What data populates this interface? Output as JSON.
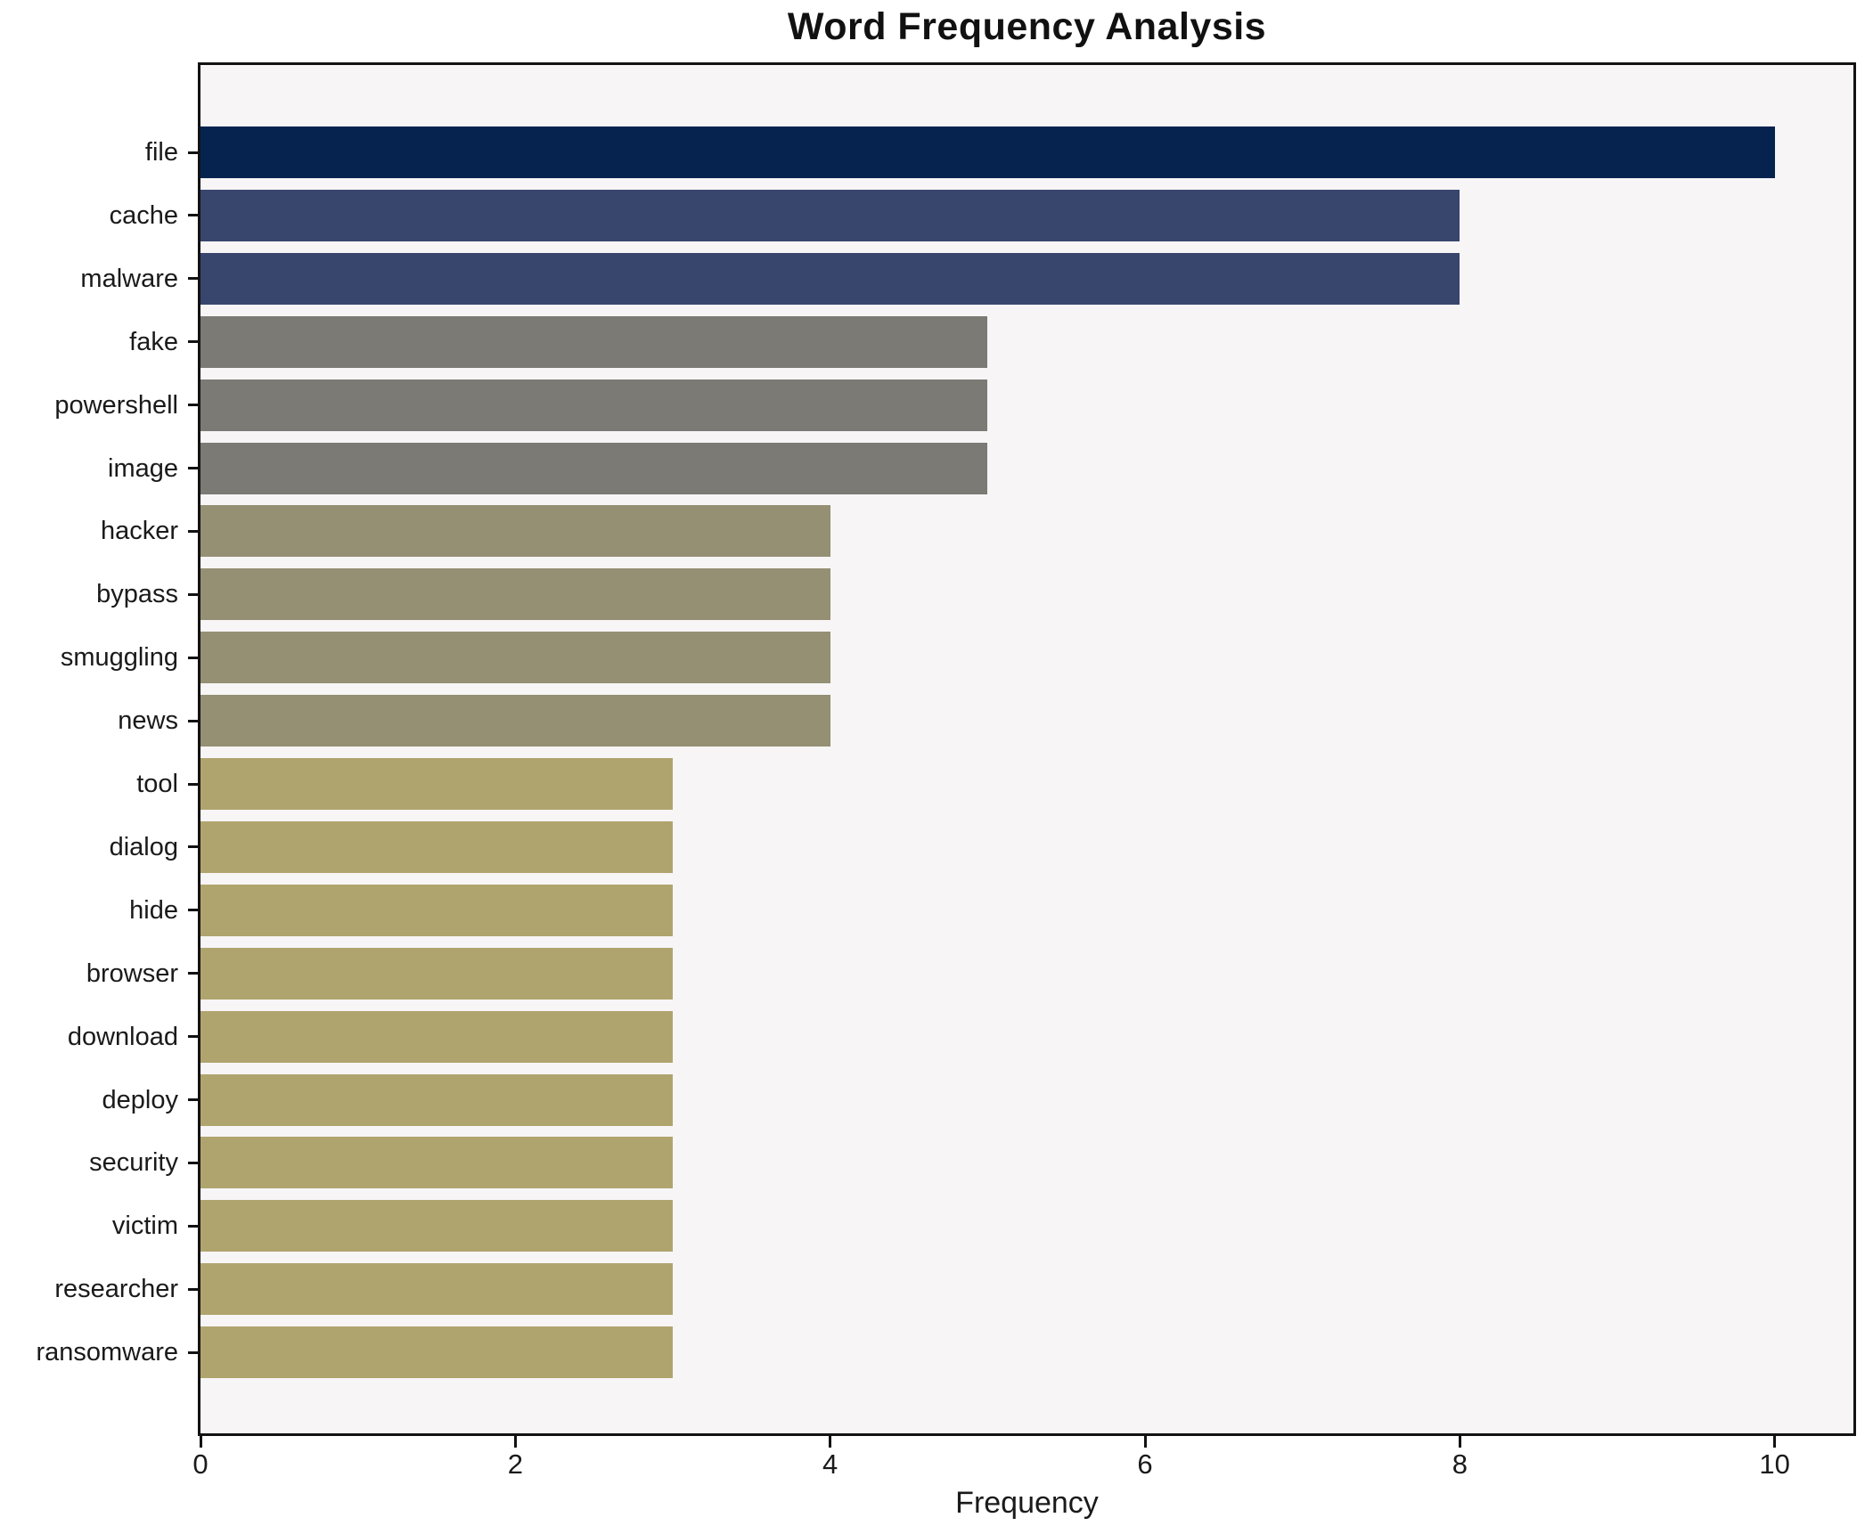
{
  "chart_data": {
    "type": "bar",
    "orientation": "horizontal",
    "title": "Word Frequency Analysis",
    "xlabel": "Frequency",
    "ylabel": "",
    "grid": false,
    "legend": null,
    "xlim": [
      0,
      10.5
    ],
    "xticks": [
      "0",
      "2",
      "4",
      "6",
      "8",
      "10"
    ],
    "xtick_values": [
      0,
      2,
      4,
      6,
      8,
      10
    ],
    "plot_background": "#f7f5f6",
    "categories": [
      "file",
      "cache",
      "malware",
      "fake",
      "powershell",
      "image",
      "hacker",
      "bypass",
      "smuggling",
      "news",
      "tool",
      "dialog",
      "hide",
      "browser",
      "download",
      "deploy",
      "security",
      "victim",
      "researcher",
      "ransomware"
    ],
    "values": [
      10,
      8,
      8,
      5,
      5,
      5,
      4,
      4,
      4,
      4,
      3,
      3,
      3,
      3,
      3,
      3,
      3,
      3,
      3,
      3
    ],
    "bar_colors": [
      "#05234e",
      "#38466e",
      "#38466e",
      "#7b7a74",
      "#7b7a74",
      "#7b7a74",
      "#958f73",
      "#958f73",
      "#958f73",
      "#958f73",
      "#b0a46e",
      "#b0a46e",
      "#b0a46e",
      "#b0a46e",
      "#b0a46e",
      "#b0a46e",
      "#b0a46e",
      "#b0a46e",
      "#b0a46e",
      "#b0a46e"
    ]
  }
}
